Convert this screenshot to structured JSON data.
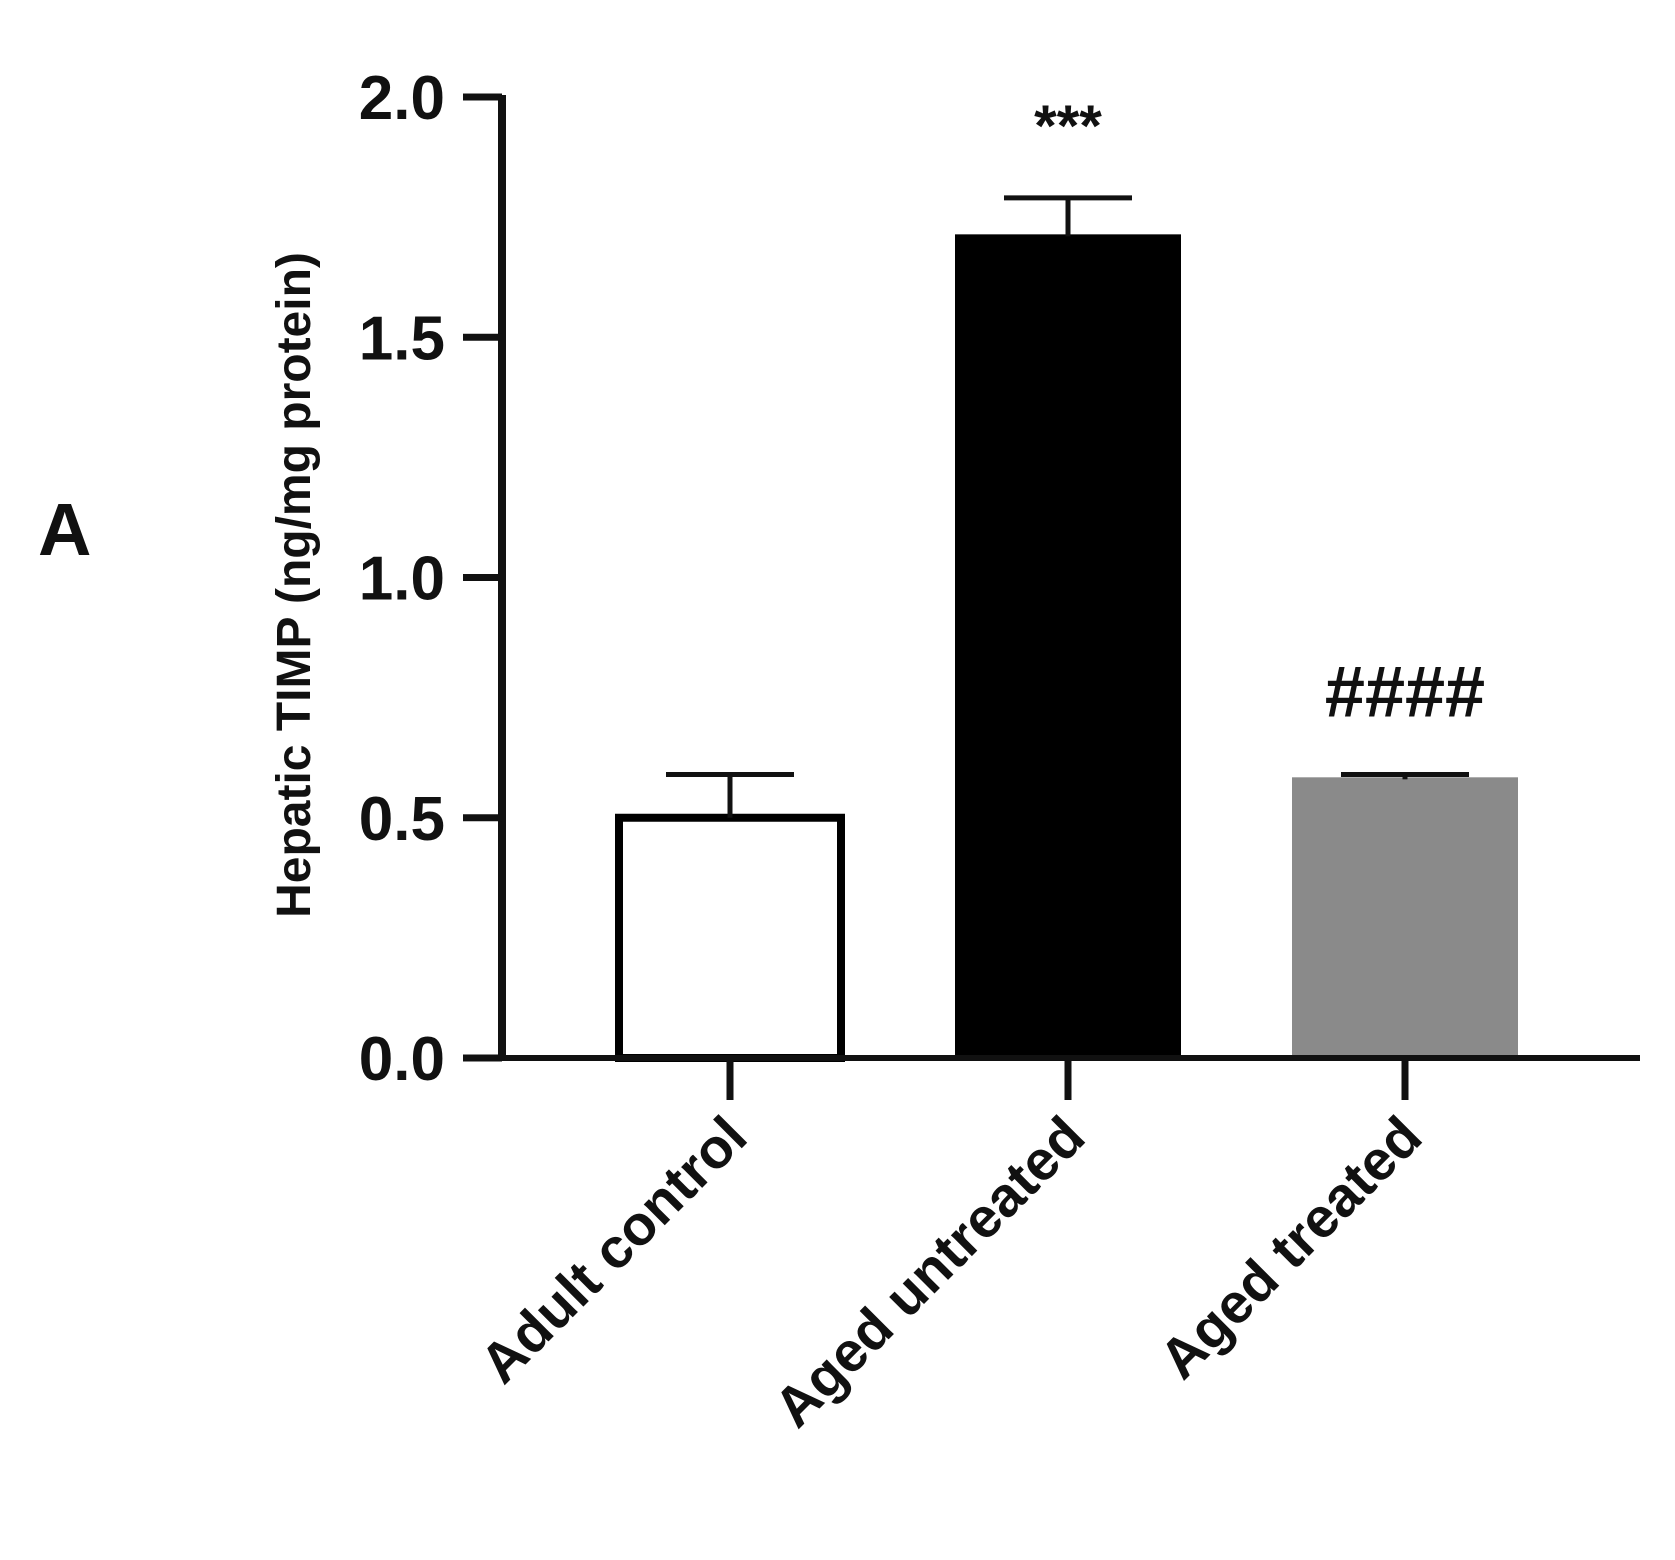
{
  "panel_label": "A",
  "chart_data": {
    "type": "bar",
    "title": "",
    "xlabel": "",
    "ylabel": "Hepatic TIMP (ng/mg protein)",
    "ylim": [
      0,
      2.0
    ],
    "yticks": [
      0.0,
      0.5,
      1.0,
      1.5,
      2.0
    ],
    "ytick_labels": [
      "0.0",
      "0.5",
      "1.0",
      "1.5",
      "2.0"
    ],
    "categories": [
      "Adult control",
      "Aged untreated",
      "Aged treated"
    ],
    "values": [
      0.5,
      1.71,
      0.58
    ],
    "error_upper": [
      0.59,
      1.79,
      0.59
    ],
    "annotations": [
      "",
      "***",
      "####"
    ],
    "bar_fills": [
      "#ffffff",
      "#000000",
      "#8a8a8a"
    ],
    "bar_strokes": [
      "#000000",
      "#000000",
      "#8a8a8a"
    ],
    "grid": false,
    "legend": "none"
  }
}
